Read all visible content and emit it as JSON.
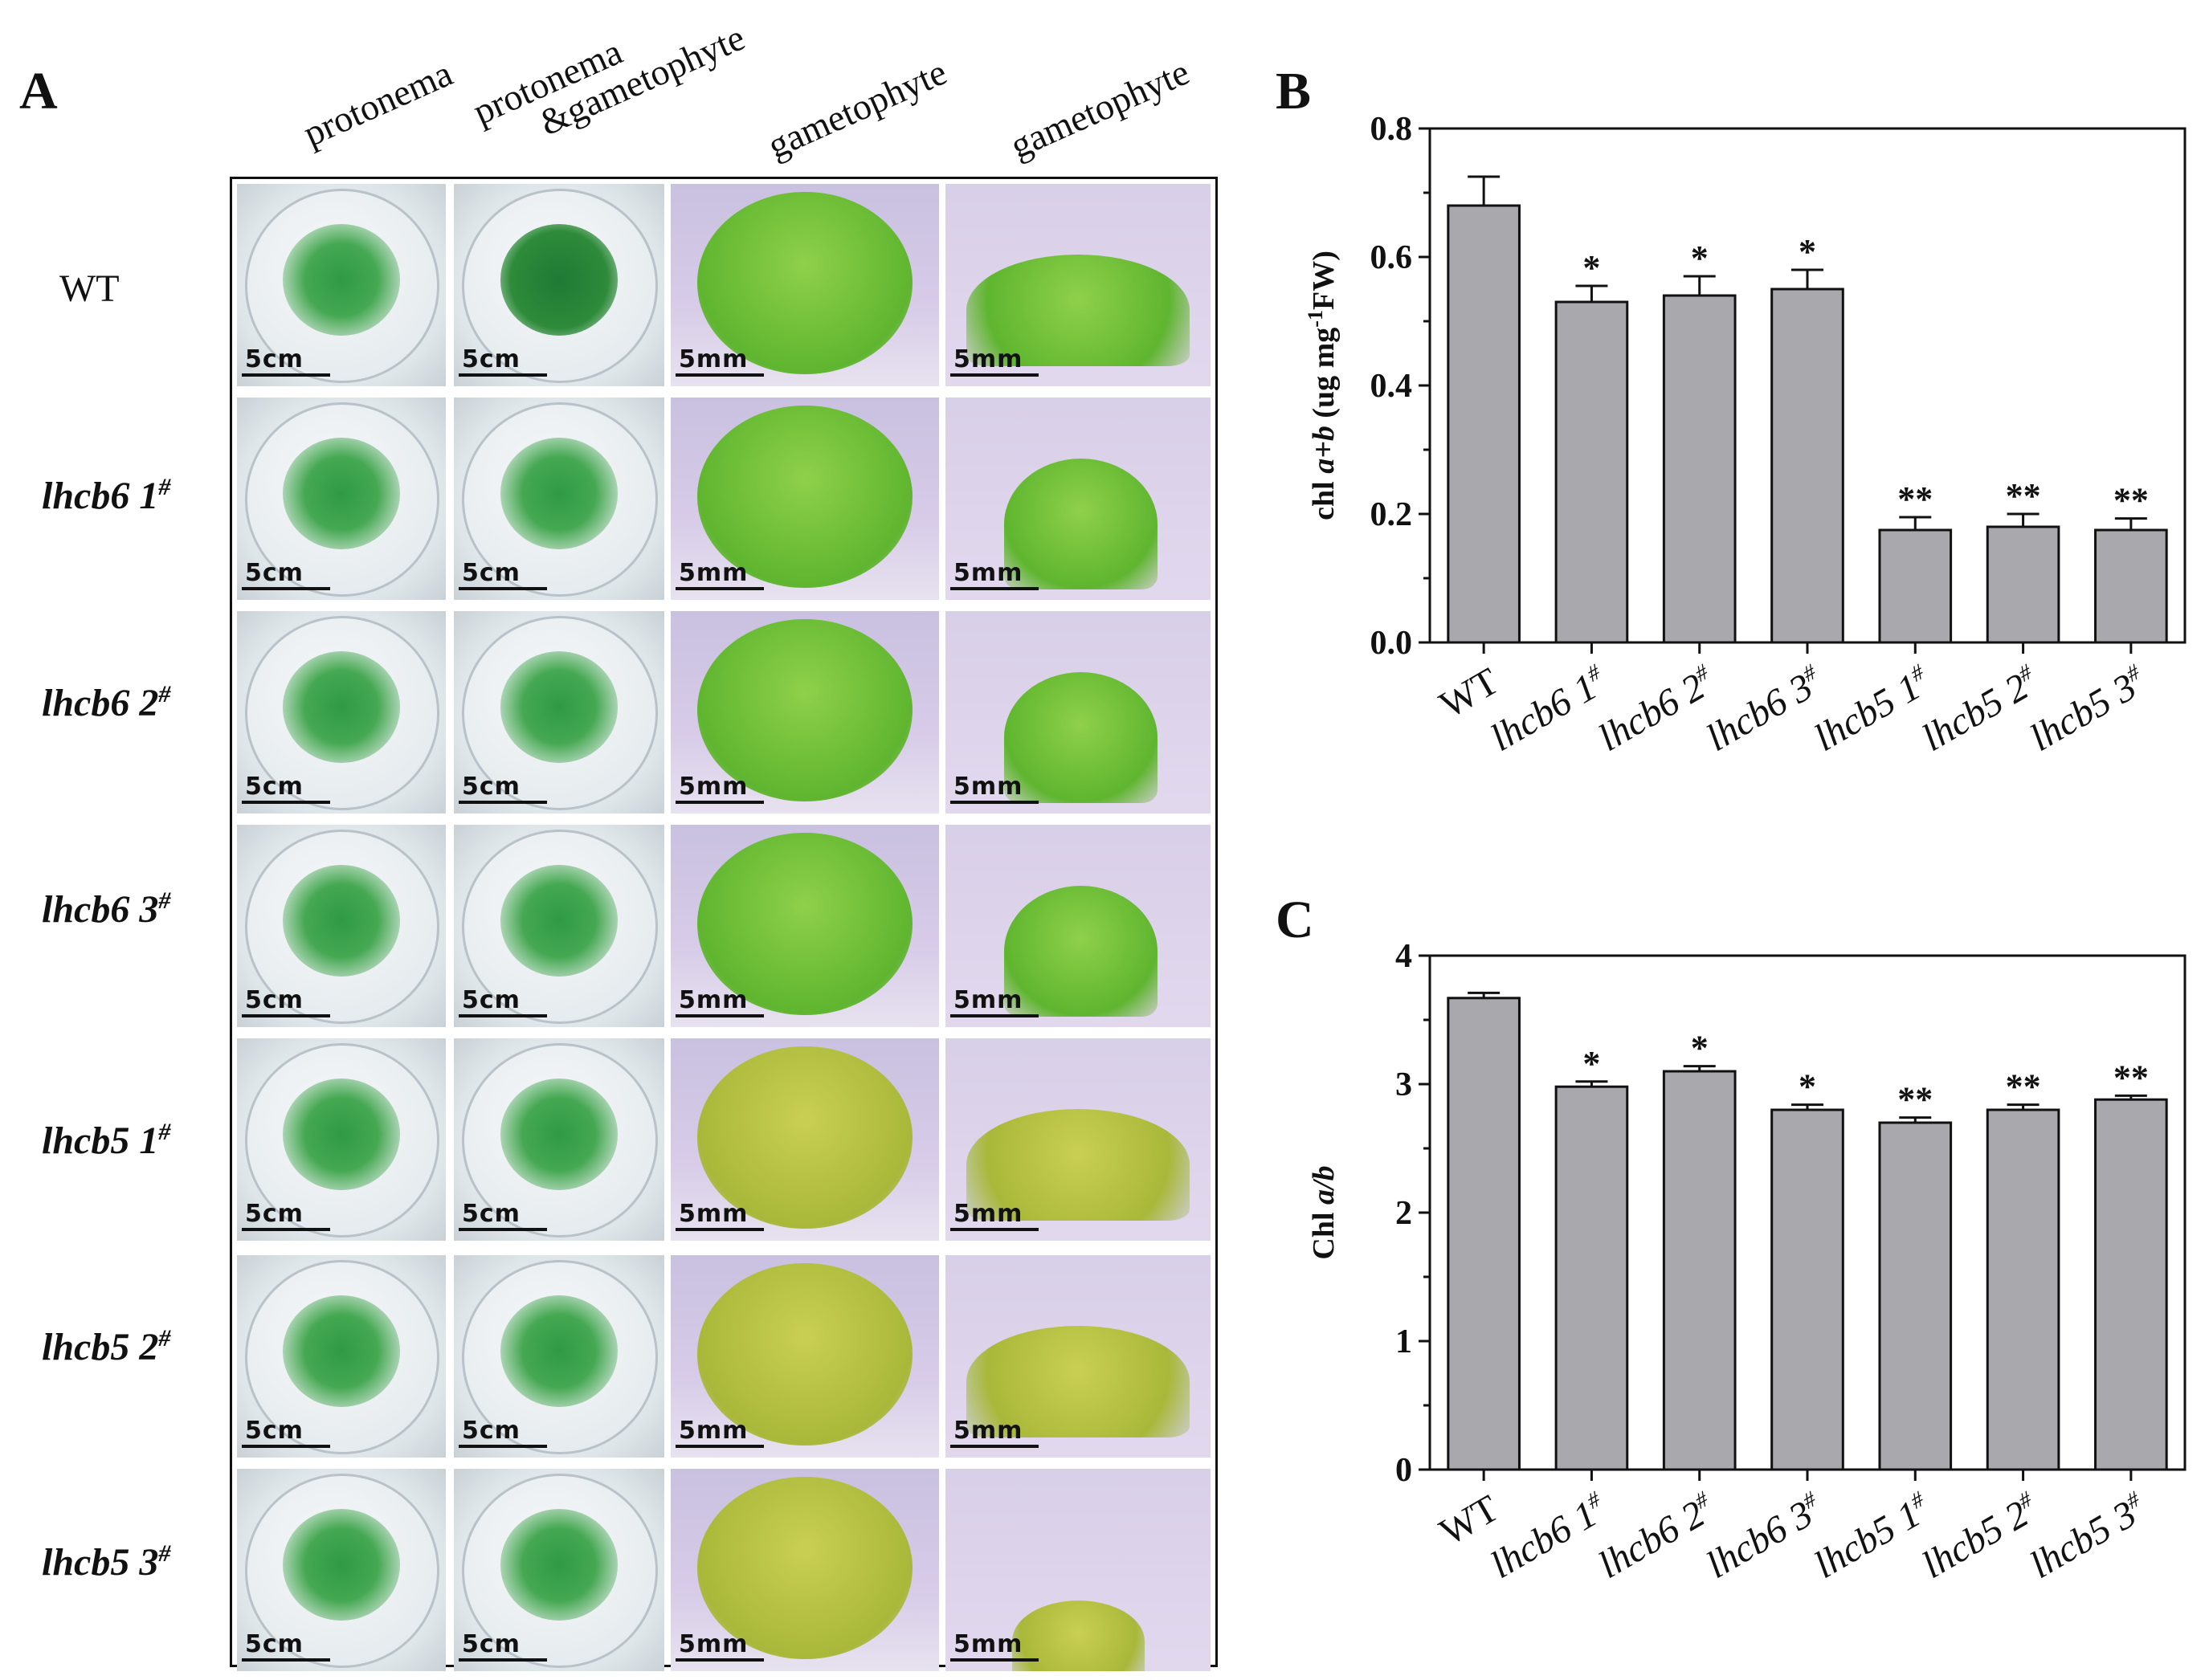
{
  "panel_a": {
    "letter": "A",
    "columns": [
      "protonema",
      "protonema\n&gametophyte",
      "gametophyte",
      "gametophyte"
    ],
    "column_line1": [
      "protonema",
      "protonema",
      "gametophyte",
      "gametophyte"
    ],
    "column_line2": [
      "",
      "&gametophyte",
      "",
      ""
    ],
    "rows": [
      {
        "name": "WT",
        "sup": ""
      },
      {
        "name": "lhcb6 1",
        "sup": "#"
      },
      {
        "name": "lhcb6 2",
        "sup": "#"
      },
      {
        "name": "lhcb6 3",
        "sup": "#"
      },
      {
        "name": "lhcb5 1",
        "sup": "#"
      },
      {
        "name": "lhcb5 2",
        "sup": "#"
      },
      {
        "name": "lhcb5 3",
        "sup": "#"
      }
    ],
    "scale_labels": [
      "5cm",
      "5cm",
      "5mm",
      "5mm"
    ],
    "colors": {
      "dark_green": "#2e8b3a",
      "light_green": "#6fc23a",
      "yellow_green": "#b6c83c",
      "background_purple": "#d5c9e6"
    }
  },
  "chart_data": [
    {
      "panel": "B",
      "type": "bar",
      "categories": [
        "WT",
        "lhcb6 1#",
        "lhcb6 2#",
        "lhcb6 3#",
        "lhcb5 1#",
        "lhcb5 2#",
        "lhcb5 3#"
      ],
      "category_parts": [
        [
          "WT",
          ""
        ],
        [
          "lhcb6 1",
          "#"
        ],
        [
          "lhcb6 2",
          "#"
        ],
        [
          "lhcb6 3",
          "#"
        ],
        [
          "lhcb5 1",
          "#"
        ],
        [
          "lhcb5 2",
          "#"
        ],
        [
          "lhcb5 3",
          "#"
        ]
      ],
      "values": [
        0.68,
        0.53,
        0.54,
        0.55,
        0.175,
        0.18,
        0.175
      ],
      "errors": [
        0.045,
        0.025,
        0.03,
        0.03,
        0.02,
        0.02,
        0.018
      ],
      "significance": [
        "",
        "*",
        "*",
        "*",
        "**",
        "**",
        "**"
      ],
      "ylabel_parts": [
        "chl ",
        "a+b",
        " (ug mg",
        "-1",
        "FW)"
      ],
      "ylim": [
        0,
        0.8
      ],
      "yticks": [
        "0.0",
        "0.2",
        "0.4",
        "0.6",
        "0.8"
      ],
      "bar_color": "#a9a9ad"
    },
    {
      "panel": "C",
      "type": "bar",
      "categories": [
        "WT",
        "lhcb6 1#",
        "lhcb6 2#",
        "lhcb6 3#",
        "lhcb5 1#",
        "lhcb5 2#",
        "lhcb5 3#"
      ],
      "category_parts": [
        [
          "WT",
          ""
        ],
        [
          "lhcb6 1",
          "#"
        ],
        [
          "lhcb6 2",
          "#"
        ],
        [
          "lhcb6 3",
          "#"
        ],
        [
          "lhcb5 1",
          "#"
        ],
        [
          "lhcb5 2",
          "#"
        ],
        [
          "lhcb5 3",
          "#"
        ]
      ],
      "values": [
        3.67,
        2.98,
        3.1,
        2.8,
        2.7,
        2.8,
        2.88
      ],
      "errors": [
        0.04,
        0.04,
        0.04,
        0.04,
        0.04,
        0.04,
        0.03
      ],
      "significance": [
        "",
        "*",
        "*",
        "*",
        "**",
        "**",
        "**"
      ],
      "ylabel_parts": [
        "Chl ",
        "a/b"
      ],
      "ylim": [
        0,
        4
      ],
      "yticks": [
        "0",
        "1",
        "2",
        "3",
        "4"
      ],
      "bar_color": "#a9a9ad"
    }
  ]
}
